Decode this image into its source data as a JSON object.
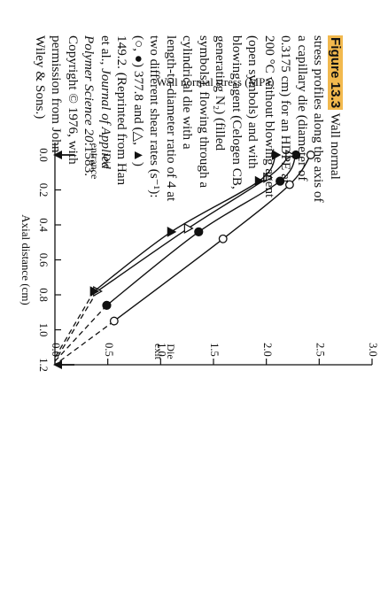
{
  "chart_data": {
    "type": "line",
    "ylabel": "Wall normal stress (MPa)",
    "xlabel": "Axial distance (cm)",
    "x_ticks": [
      "0.0",
      "0.2",
      "0.4",
      "0.6",
      "0.8",
      "1.0",
      "1.2"
    ],
    "y_ticks": [
      "0.0",
      "0.5",
      "1.0",
      "1.5",
      "2.0",
      "2.5",
      "3.0"
    ],
    "xlim": [
      0,
      1.2
    ],
    "ylim": [
      0,
      3.0
    ],
    "grid": false,
    "annotations": {
      "die_entrance": [
        "Die",
        "entrance"
      ],
      "die_exit": [
        "Die",
        "exit"
      ]
    },
    "series": [
      {
        "marker": "open-circle",
        "color": "#111111",
        "x": [
          0.0,
          0.17,
          0.48,
          0.95,
          1.2
        ],
        "y": [
          2.42,
          2.22,
          1.59,
          0.56,
          0.0
        ]
      },
      {
        "marker": "filled-circle",
        "color": "#111111",
        "x": [
          0.0,
          0.15,
          0.44,
          0.86,
          1.18
        ],
        "y": [
          2.28,
          2.13,
          1.36,
          0.49,
          0.0
        ]
      },
      {
        "marker": "open-triangle",
        "color": "#111111",
        "x": [
          0.0,
          0.13,
          0.42,
          0.78,
          1.18
        ],
        "y": [
          2.22,
          2.01,
          1.26,
          0.4,
          0.0
        ]
      },
      {
        "marker": "filled-triangle",
        "color": "#111111",
        "x": [
          0.0,
          0.15,
          0.44,
          0.78,
          1.16
        ],
        "y": [
          2.09,
          1.93,
          1.1,
          0.37,
          0.0
        ]
      }
    ]
  },
  "caption": {
    "label": "Figure 13.3",
    "lines": [
      " Wall normal",
      "stress profiles along the axis of",
      "a capillary die (diameter of",
      "0.3175 cm) for an HDPE at",
      "200 °C without blowing agent",
      "(open symbols) and with",
      "blowing agent (Celogen CB,",
      "generating N₂) (filled",
      "symbols), flowing through a",
      "cylindrical die with a",
      "length-to-diameter ratio of 4 at",
      "two different shear rates (s⁻¹):",
      "(○, ●) 377.8 and (△, ▲)",
      "149.2. (Reprinted from Han",
      "et al., ",
      "Journal of Applied",
      "Polymer Science 20",
      ":1583.",
      "Copyright © 1976, with",
      "permission from John",
      "Wiley & Sons.)"
    ]
  }
}
